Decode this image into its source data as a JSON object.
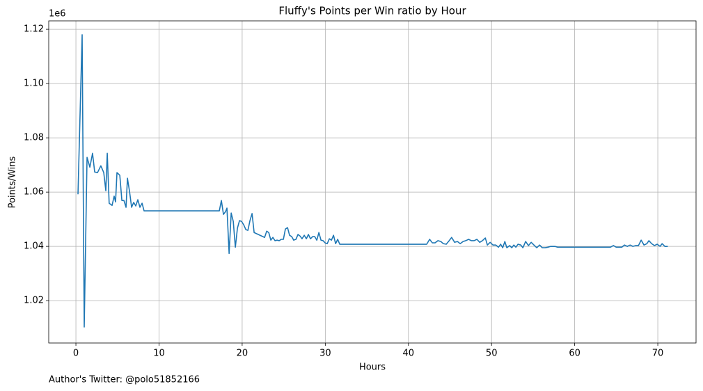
{
  "chart_data": {
    "type": "line",
    "title": "Fluffy's Points per Win ratio by Hour",
    "x_label": "Hours",
    "y_label": "Points/Wins",
    "y_offset_label": "1e6",
    "annotation": "Author's Twitter: @polo51852166",
    "color": "#1f77b4",
    "grid": true,
    "xlim": [
      -3.27,
      74.6
    ],
    "ylim": [
      1.0044,
      1.1231
    ],
    "xticks": [
      0,
      10,
      20,
      30,
      40,
      50,
      60,
      70
    ],
    "yticks": [
      1.02,
      1.04,
      1.06,
      1.08,
      {
        "value": 1.1,
        "label": "1.10"
      },
      1.12
    ],
    "x": [
      0.25,
      0.75,
      1.0,
      1.34,
      1.68,
      2.0,
      2.26,
      2.6,
      3.0,
      3.35,
      3.6,
      3.77,
      4.0,
      4.35,
      4.6,
      4.77,
      4.94,
      5.28,
      5.53,
      5.78,
      6.03,
      6.2,
      6.45,
      6.7,
      6.95,
      7.2,
      7.45,
      7.7,
      7.96,
      8.2,
      17.25,
      17.5,
      17.75,
      18.0,
      18.17,
      18.43,
      18.68,
      18.93,
      19.18,
      19.43,
      19.68,
      19.93,
      20.18,
      20.44,
      20.69,
      20.94,
      21.19,
      21.44,
      22.7,
      22.95,
      23.2,
      23.45,
      23.7,
      23.95,
      24.2,
      24.46,
      24.7,
      24.96,
      25.2,
      25.46,
      25.7,
      25.96,
      26.2,
      26.47,
      26.72,
      26.97,
      27.2,
      27.47,
      27.72,
      27.97,
      28.22,
      28.48,
      28.73,
      28.98,
      29.23,
      29.48,
      29.73,
      29.98,
      30.23,
      30.49,
      30.74,
      30.99,
      31.24,
      31.49,
      31.74,
      42.2,
      42.55,
      42.88,
      43.2,
      43.55,
      43.9,
      44.2,
      44.55,
      44.9,
      45.2,
      45.56,
      45.9,
      46.23,
      46.57,
      46.9,
      47.24,
      47.57,
      47.9,
      48.24,
      48.58,
      48.9,
      49.25,
      49.5,
      49.83,
      50.17,
      50.5,
      50.84,
      51.09,
      51.34,
      51.6,
      51.84,
      52.18,
      52.43,
      52.68,
      52.93,
      53.18,
      53.52,
      53.77,
      54.1,
      54.44,
      54.77,
      55.1,
      55.44,
      55.78,
      56.1,
      56.45,
      56.78,
      57.12,
      57.62,
      57.96,
      64.3,
      64.66,
      65.0,
      65.66,
      66.0,
      66.33,
      66.67,
      67.0,
      67.34,
      67.67,
      68.0,
      68.34,
      68.68,
      68.93,
      69.26,
      69.6,
      69.93,
      70.27,
      70.52,
      70.85,
      71.2
    ],
    "values": [
      1.0592,
      1.118,
      1.0103,
      1.0728,
      1.0692,
      1.0743,
      1.0674,
      1.0672,
      1.0697,
      1.0672,
      1.0605,
      1.0743,
      1.0559,
      1.0551,
      1.0585,
      1.0564,
      1.0672,
      1.0662,
      1.0569,
      1.0569,
      1.0544,
      1.0651,
      1.0603,
      1.0544,
      1.0562,
      1.0549,
      1.0572,
      1.0544,
      1.0559,
      1.0531,
      1.0531,
      1.0569,
      1.0518,
      1.0528,
      1.0541,
      1.0374,
      1.0523,
      1.0492,
      1.0397,
      1.0467,
      1.0495,
      1.0492,
      1.048,
      1.0462,
      1.0459,
      1.0495,
      1.0521,
      1.0451,
      1.0433,
      1.0456,
      1.0451,
      1.0423,
      1.0433,
      1.0421,
      1.0423,
      1.0421,
      1.0426,
      1.0426,
      1.0464,
      1.0469,
      1.0441,
      1.0436,
      1.0423,
      1.0426,
      1.0444,
      1.0438,
      1.0428,
      1.0441,
      1.0428,
      1.0444,
      1.0428,
      1.0436,
      1.0436,
      1.0423,
      1.0451,
      1.0423,
      1.0421,
      1.0413,
      1.041,
      1.0428,
      1.0423,
      1.0441,
      1.041,
      1.0426,
      1.0408,
      1.0408,
      1.0426,
      1.0413,
      1.0413,
      1.0421,
      1.0418,
      1.041,
      1.0408,
      1.0421,
      1.0433,
      1.0415,
      1.0418,
      1.041,
      1.0418,
      1.0421,
      1.0426,
      1.0421,
      1.0421,
      1.0426,
      1.0415,
      1.0421,
      1.0431,
      1.0405,
      1.0415,
      1.0405,
      1.0405,
      1.0397,
      1.0408,
      1.0395,
      1.0418,
      1.0395,
      1.0403,
      1.0395,
      1.0405,
      1.0397,
      1.0408,
      1.0405,
      1.0395,
      1.0418,
      1.0403,
      1.0415,
      1.0405,
      1.0395,
      1.0405,
      1.0395,
      1.0395,
      1.0397,
      1.04,
      1.04,
      1.0397,
      1.0397,
      1.0403,
      1.0397,
      1.0397,
      1.0405,
      1.04,
      1.0405,
      1.04,
      1.0403,
      1.0403,
      1.0423,
      1.0405,
      1.041,
      1.0421,
      1.041,
      1.0403,
      1.0408,
      1.04,
      1.041,
      1.04,
      1.04
    ]
  }
}
